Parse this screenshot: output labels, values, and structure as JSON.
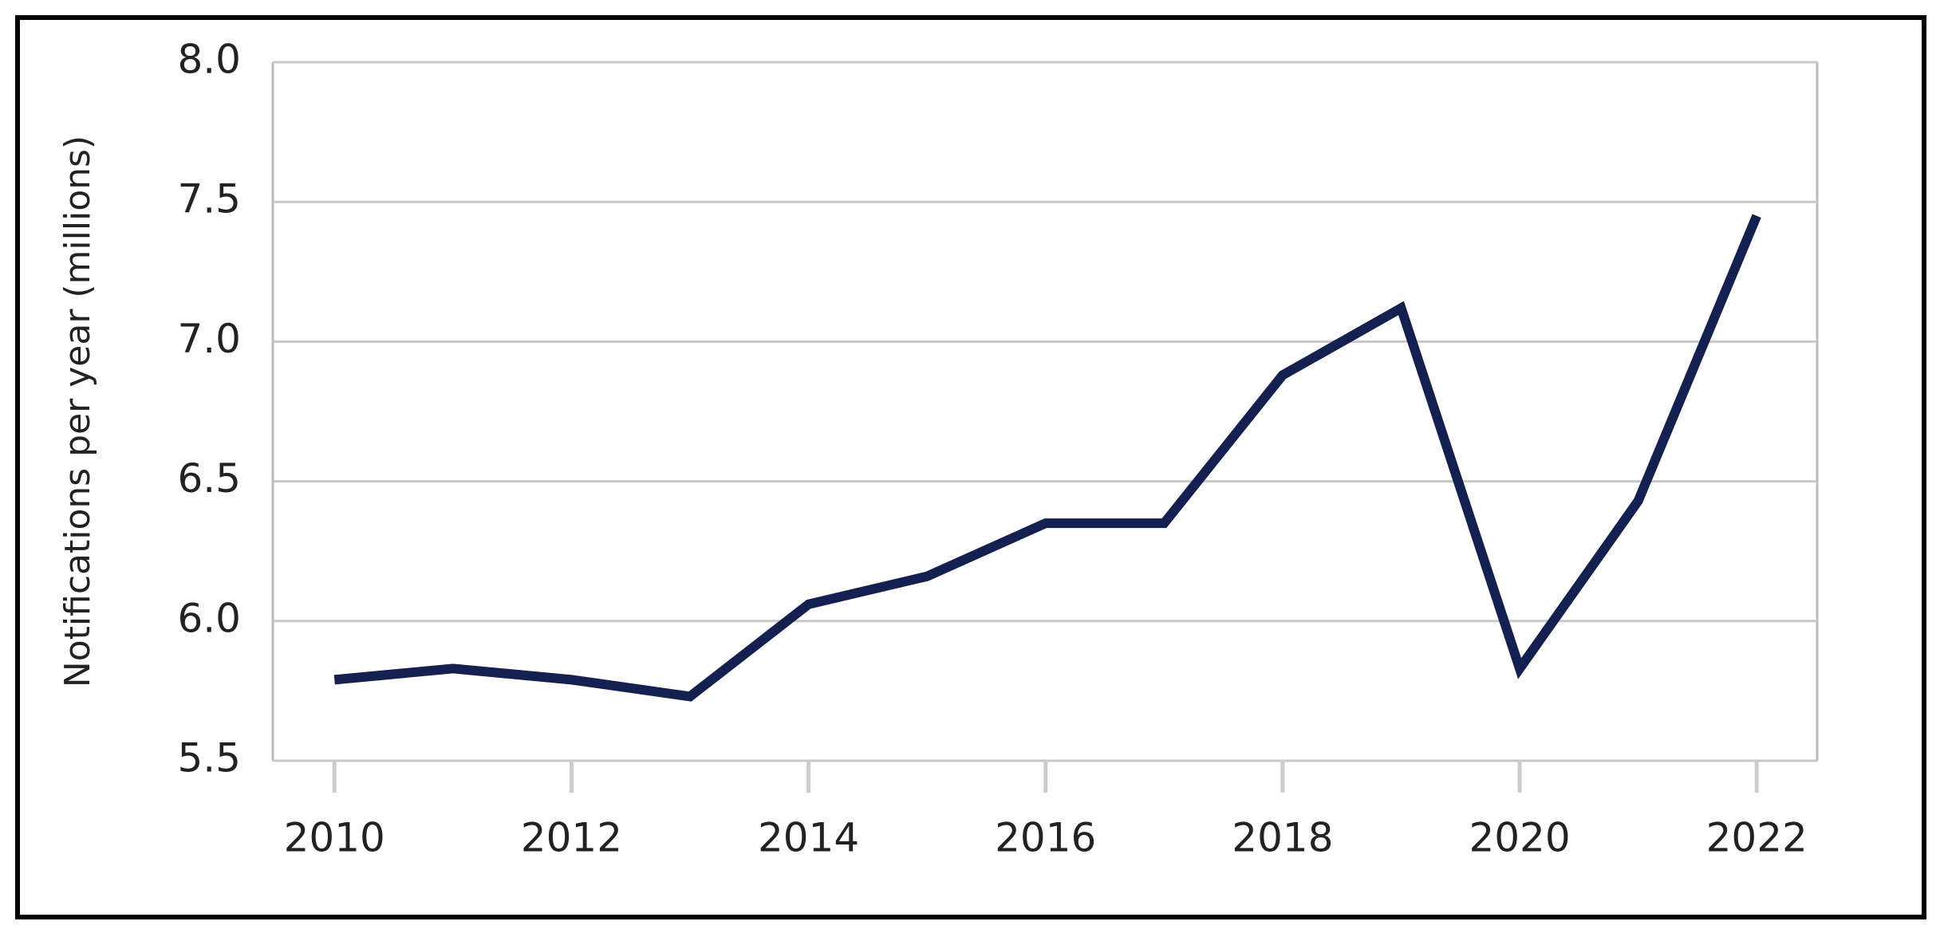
{
  "chart_data": {
    "type": "line",
    "y_label": "Notifications per year (millions)",
    "x": [
      2010,
      2011,
      2012,
      2013,
      2014,
      2015,
      2016,
      2017,
      2018,
      2019,
      2020,
      2021,
      2022
    ],
    "series": [
      {
        "color": "#142050",
        "values": [
          5.79,
          5.83,
          5.79,
          5.73,
          6.06,
          6.16,
          6.35,
          6.35,
          6.88,
          7.12,
          5.83,
          6.43,
          7.45
        ]
      }
    ],
    "xlim": [
      2009.48,
      2022.51
    ],
    "xticks": [
      2010,
      2012,
      2014,
      2016,
      2018,
      2020,
      2022
    ],
    "ylim": [
      5.5,
      8
    ],
    "yticks": [
      5.5,
      {
        "value": 6,
        "label": "6.0"
      },
      6.5,
      {
        "value": 7,
        "label": "7.0"
      },
      7.5,
      {
        "value": 8,
        "label": "8.0"
      }
    ],
    "grid": true
  }
}
